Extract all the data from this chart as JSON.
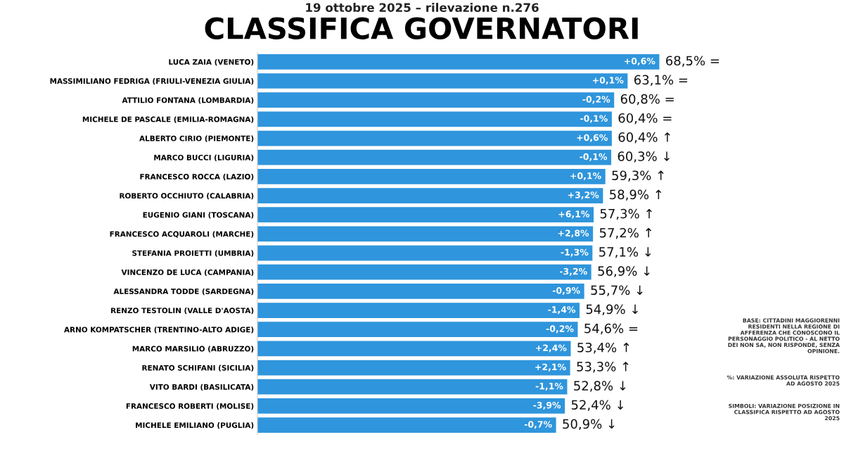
{
  "chart_data": {
    "type": "bar",
    "orientation": "horizontal",
    "title": "CLASSIFICA GOVERNATORI",
    "subtitle": "19 ottobre 2025 – rilevazione n.276",
    "categories": [
      "LUCA ZAIA (VENETO)",
      "MASSIMILIANO FEDRIGA (FRIULI-VENEZIA GIULIA)",
      "ATTILIO FONTANA (LOMBARDIA)",
      "MICHELE DE PASCALE (EMILIA-ROMAGNA)",
      "ALBERTO CIRIO (PIEMONTE)",
      "MARCO BUCCI (LIGURIA)",
      "FRANCESCO ROCCA (LAZIO)",
      "ROBERTO OCCHIUTO (CALABRIA)",
      "EUGENIO GIANI (TOSCANA)",
      "FRANCESCO ACQUAROLI (MARCHE)",
      "STEFANIA PROIETTI (UMBRIA)",
      "VINCENZO DE LUCA (CAMPANIA)",
      "ALESSANDRA TODDE (SARDEGNA)",
      "RENZO TESTOLIN (VALLE D'AOSTA)",
      "ARNO KOMPATSCHER (TRENTINO-ALTO ADIGE)",
      "MARCO MARSILIO (ABRUZZO)",
      "RENATO SCHIFANI (SICILIA)",
      "VITO BARDI (BASILICATA)",
      "FRANCESCO ROBERTI (MOLISE)",
      "MICHELE EMILIANO (PUGLIA)"
    ],
    "values": [
      68.5,
      63.1,
      60.8,
      60.4,
      60.4,
      60.3,
      59.3,
      58.9,
      57.3,
      57.2,
      57.1,
      56.9,
      55.7,
      54.9,
      54.6,
      53.4,
      53.3,
      52.8,
      52.4,
      50.9
    ],
    "value_labels": [
      "68,5% =",
      "63,1% =",
      "60,8% =",
      "60,4% =",
      "60,4% ↑",
      "60,3% ↓",
      "59,3% ↑",
      "58,9% ↑",
      "57,3% ↑",
      "57,2% ↑",
      "57,1% ↓",
      "56,9% ↓",
      "55,7% ↓",
      "54,9% ↓",
      "54,6% =",
      "53,4% ↑",
      "53,3% ↑",
      "52,8% ↓",
      "52,4% ↓",
      "50,9% ↓"
    ],
    "color": "#2f95dc",
    "tick_labels": "y",
    "grid": false,
    "annotations": [
      {
        "text": "+0,6%",
        "x": 68.5,
        "y": "LUCA ZAIA (VENETO)"
      },
      {
        "text": "+0,1%",
        "x": 63.1,
        "y": "MASSIMILIANO FEDRIGA (FRIULI-VENEZIA GIULIA)"
      },
      {
        "text": "-0,2%",
        "x": 60.8,
        "y": "ATTILIO FONTANA (LOMBARDIA)"
      },
      {
        "text": "-0,1%",
        "x": 60.4,
        "y": "MICHELE DE PASCALE (EMILIA-ROMAGNA)"
      },
      {
        "text": "+0,6%",
        "x": 60.4,
        "y": "ALBERTO CIRIO (PIEMONTE)"
      },
      {
        "text": "-0,1%",
        "x": 60.3,
        "y": "MARCO BUCCI (LIGURIA)"
      },
      {
        "text": "+0,1%",
        "x": 59.3,
        "y": "FRANCESCO ROCCA (LAZIO)"
      },
      {
        "text": "+3,2%",
        "x": 58.9,
        "y": "ROBERTO OCCHIUTO (CALABRIA)"
      },
      {
        "text": "+6,1%",
        "x": 57.3,
        "y": "EUGENIO GIANI (TOSCANA)"
      },
      {
        "text": "+2,8%",
        "x": 57.2,
        "y": "FRANCESCO ACQUAROLI (MARCHE)"
      },
      {
        "text": "-1,3%",
        "x": 57.1,
        "y": "STEFANIA PROIETTI (UMBRIA)"
      },
      {
        "text": "-3,2%",
        "x": 56.9,
        "y": "VINCENZO DE LUCA (CAMPANIA)"
      },
      {
        "text": "-0,9%",
        "x": 55.7,
        "y": "ALESSANDRA TODDE (SARDEGNA)"
      },
      {
        "text": "-1,4%",
        "x": 54.9,
        "y": "RENZO TESTOLIN (VALLE D'AOSTA)"
      },
      {
        "text": "-0,2%",
        "x": 54.6,
        "y": "ARNO KOMPATSCHER (TRENTINO-ALTO ADIGE)"
      },
      {
        "text": "+2,4%",
        "x": 53.4,
        "y": "MARCO MARSILIO (ABRUZZO)"
      },
      {
        "text": "+2,1%",
        "x": 53.3,
        "y": "RENATO SCHIFANI (SICILIA)"
      },
      {
        "text": "-1,1%",
        "x": 52.8,
        "y": "VITO BARDI (BASILICATA)"
      },
      {
        "text": "-3,9%",
        "x": 52.4,
        "y": "FRANCESCO ROBERTI (MOLISE)"
      },
      {
        "text": "-0,7%",
        "x": 50.9,
        "y": "MICHELE EMILIANO (PUGLIA)"
      },
      "BASE: CITTADINI MAGGIORENNI RESIDENTI NELLA REGIONE DI AFFERENZA CHE CONOSCONO IL PERSONAGGIO POLITICO - AL NETTO DEI NON SA, NON RISPONDE, SENZA OPINIONE.",
      "%: VARIAZIONE ASSOLUTA RISPETTO AD AGOSTO 2025",
      "SIMBOLI: VARIAZIONE POSIZIONE IN CLASSIFICA RISPETTO AD AGOSTO 2025"
    ]
  }
}
